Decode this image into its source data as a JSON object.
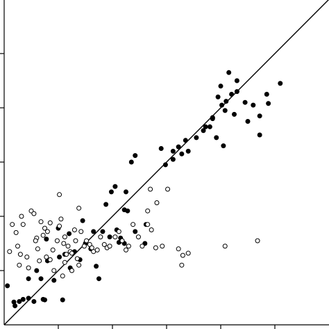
{
  "chart_data": {
    "type": "scatter",
    "title": "",
    "xlabel": "",
    "ylabel": "",
    "xlim": [
      0,
      6
    ],
    "ylim": [
      0,
      6
    ],
    "grid": false,
    "legend": "none",
    "x_ticks": [
      1,
      2,
      3,
      4,
      5
    ],
    "y_ticks": [
      1,
      2,
      3,
      4,
      5
    ],
    "reference_line": {
      "type": "identity",
      "slope": 1,
      "intercept": 0
    },
    "colors": {
      "filled": "#000000",
      "open": "#ffffff",
      "stroke": "#000000"
    },
    "series": [
      {
        "marker": "filled-circle",
        "points": [
          [
            0.06,
            0.72
          ],
          [
            0.2,
            0.35
          ],
          [
            0.18,
            0.42
          ],
          [
            0.28,
            0.43
          ],
          [
            0.35,
            0.47
          ],
          [
            0.45,
            0.49
          ],
          [
            0.55,
            0.43
          ],
          [
            0.72,
            0.47
          ],
          [
            0.75,
            0.46
          ],
          [
            1.08,
            0.46
          ],
          [
            0.45,
            0.85
          ],
          [
            0.6,
            1.0
          ],
          [
            0.68,
            0.85
          ],
          [
            0.8,
            1.18
          ],
          [
            0.92,
            0.82
          ],
          [
            1.02,
            1.25
          ],
          [
            1.12,
            1.3
          ],
          [
            1.22,
            1.05
          ],
          [
            1.3,
            1.35
          ],
          [
            1.4,
            1.2
          ],
          [
            1.5,
            1.5
          ],
          [
            1.6,
            1.4
          ],
          [
            1.75,
            0.85
          ],
          [
            1.82,
            1.72
          ],
          [
            1.95,
            1.62
          ],
          [
            2.08,
            1.75
          ],
          [
            2.22,
            1.5
          ],
          [
            2.28,
            2.1
          ],
          [
            2.42,
            1.72
          ],
          [
            2.6,
            1.5
          ],
          [
            2.22,
            2.12
          ],
          [
            0.78,
            1.58
          ],
          [
            1.0,
            1.78
          ],
          [
            1.2,
            1.68
          ],
          [
            1.45,
            1.92
          ],
          [
            1.65,
            1.72
          ],
          [
            1.88,
            2.22
          ],
          [
            1.98,
            2.45
          ],
          [
            2.12,
            1.52
          ],
          [
            2.25,
            2.45
          ],
          [
            2.62,
            1.85
          ],
          [
            2.98,
            2.95
          ],
          [
            3.12,
            3.2
          ],
          [
            3.22,
            3.28
          ],
          [
            3.35,
            3.4
          ],
          [
            3.55,
            3.45
          ],
          [
            3.72,
            3.65
          ],
          [
            3.85,
            3.8
          ],
          [
            4.08,
            3.95
          ],
          [
            4.02,
            4.05
          ],
          [
            4.3,
            4.5
          ],
          [
            4.45,
            4.1
          ],
          [
            4.6,
            4.05
          ],
          [
            4.2,
            4.25
          ],
          [
            4.0,
            4.4
          ],
          [
            4.15,
            4.65
          ],
          [
            4.5,
            3.75
          ],
          [
            4.72,
            3.85
          ],
          [
            4.05,
            3.3
          ],
          [
            3.92,
            3.45
          ],
          [
            3.8,
            3.65
          ],
          [
            3.4,
            3.2
          ],
          [
            3.28,
            3.15
          ],
          [
            3.12,
            3.05
          ],
          [
            2.35,
            3.0
          ],
          [
            2.05,
            2.55
          ],
          [
            2.9,
            3.25
          ],
          [
            3.68,
            3.58
          ],
          [
            2.42,
            3.12
          ],
          [
            4.72,
            3.5
          ],
          [
            5.1,
            4.45
          ],
          [
            4.85,
            4.25
          ],
          [
            4.88,
            4.08
          ],
          [
            4.1,
            4.12
          ],
          [
            4.25,
            3.88
          ],
          [
            4.3,
            4.3
          ],
          [
            3.95,
            4.2
          ],
          [
            3.85,
            3.82
          ],
          [
            1.7,
            1.08
          ],
          [
            2.15,
            1.6
          ]
        ]
      },
      {
        "marker": "open-circle",
        "points": [
          [
            0.15,
            1.85
          ],
          [
            0.35,
            1.85
          ],
          [
            0.32,
            2.0
          ],
          [
            0.5,
            2.1
          ],
          [
            0.1,
            1.35
          ],
          [
            0.25,
            1.45
          ],
          [
            0.42,
            1.25
          ],
          [
            0.45,
            1.05
          ],
          [
            0.6,
            1.6
          ],
          [
            0.72,
            1.65
          ],
          [
            0.75,
            1.78
          ],
          [
            0.8,
            1.72
          ],
          [
            0.85,
            1.2
          ],
          [
            0.9,
            1.38
          ],
          [
            0.98,
            1.55
          ],
          [
            1.05,
            1.95
          ],
          [
            1.1,
            1.5
          ],
          [
            1.12,
            1.62
          ],
          [
            1.18,
            1.45
          ],
          [
            1.22,
            1.35
          ],
          [
            1.25,
            1.32
          ],
          [
            1.32,
            1.55
          ],
          [
            1.35,
            1.22
          ],
          [
            1.42,
            1.72
          ],
          [
            1.48,
            1.45
          ],
          [
            1.52,
            1.55
          ],
          [
            1.58,
            1.48
          ],
          [
            1.62,
            1.42
          ],
          [
            1.65,
            1.35
          ],
          [
            1.72,
            1.38
          ],
          [
            1.78,
            1.62
          ],
          [
            1.85,
            1.48
          ],
          [
            1.9,
            1.42
          ],
          [
            1.95,
            1.45
          ],
          [
            2.05,
            1.62
          ],
          [
            2.12,
            1.72
          ],
          [
            2.18,
            1.55
          ],
          [
            2.25,
            1.38
          ],
          [
            2.3,
            1.45
          ],
          [
            2.38,
            1.85
          ],
          [
            2.48,
            1.62
          ],
          [
            2.55,
            1.45
          ],
          [
            2.65,
            1.85
          ],
          [
            2.72,
            1.75
          ],
          [
            2.8,
            1.42
          ],
          [
            2.92,
            1.45
          ],
          [
            3.02,
            2.5
          ],
          [
            3.22,
            1.4
          ],
          [
            3.3,
            1.28
          ],
          [
            3.4,
            1.32
          ],
          [
            3.28,
            1.1
          ],
          [
            4.08,
            1.45
          ],
          [
            4.68,
            1.55
          ],
          [
            2.65,
            2.1
          ],
          [
            2.82,
            2.25
          ],
          [
            2.7,
            2.5
          ],
          [
            0.22,
            1.7
          ],
          [
            0.28,
            1.1
          ],
          [
            0.58,
            1.55
          ],
          [
            0.65,
            1.18
          ],
          [
            0.78,
            1.25
          ],
          [
            0.92,
            1.0
          ],
          [
            1.08,
            0.9
          ],
          [
            1.15,
            1.3
          ],
          [
            1.25,
            1.0
          ],
          [
            1.38,
            1.1
          ],
          [
            0.68,
            1.9
          ],
          [
            0.85,
            1.88
          ],
          [
            1.02,
            1.82
          ],
          [
            0.55,
            2.05
          ],
          [
            1.02,
            2.4
          ],
          [
            1.3,
            1.75
          ],
          [
            1.38,
            2.15
          ],
          [
            1.12,
            1.15
          ],
          [
            0.62,
            1.4
          ],
          [
            0.3,
            1.3
          ]
        ]
      }
    ]
  }
}
